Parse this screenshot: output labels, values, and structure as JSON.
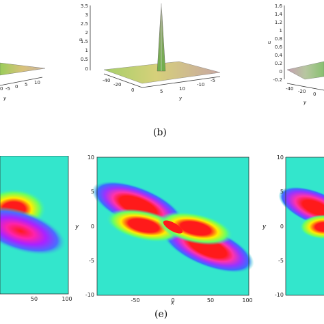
{
  "captions": {
    "top": "(b)",
    "bottom": "(e)"
  },
  "top_panels": {
    "left": {
      "y_ticks": [
        "-5",
        "0",
        "5",
        "10"
      ],
      "x_ticks": [
        "0"
      ],
      "axis_y": "y"
    },
    "middle": {
      "z_ticks": [
        "3.5",
        "3",
        "2.5",
        "2",
        "1.5",
        "1",
        "0.5",
        "0"
      ],
      "x_ticks": [
        "-40",
        "-20",
        "0"
      ],
      "y_ticks": [
        "5",
        "10",
        "-10",
        "-5"
      ],
      "axis_u": "u",
      "axis_y": "y"
    },
    "right": {
      "z_ticks": [
        "1.6",
        "1.4",
        "1.2",
        "1",
        "0.8",
        "0.6",
        "0.4",
        "0.2",
        "0",
        "-0.2"
      ],
      "x_ticks": [
        "-40",
        "-20",
        "0"
      ],
      "axis_u": "u",
      "axis_y": "y"
    }
  },
  "bottom_panels": {
    "left": {
      "x_ticks": [
        "50",
        "100"
      ]
    },
    "middle": {
      "y_ticks": [
        "10",
        "5",
        "0",
        "-5",
        "-10"
      ],
      "x_ticks": [
        "-50",
        "0",
        "50",
        "100"
      ],
      "xlabel": "x",
      "ylabel": "y"
    },
    "right": {
      "y_ticks": [
        "10",
        "5",
        "0",
        "-5",
        "-10"
      ],
      "ylabel": "y"
    }
  }
}
